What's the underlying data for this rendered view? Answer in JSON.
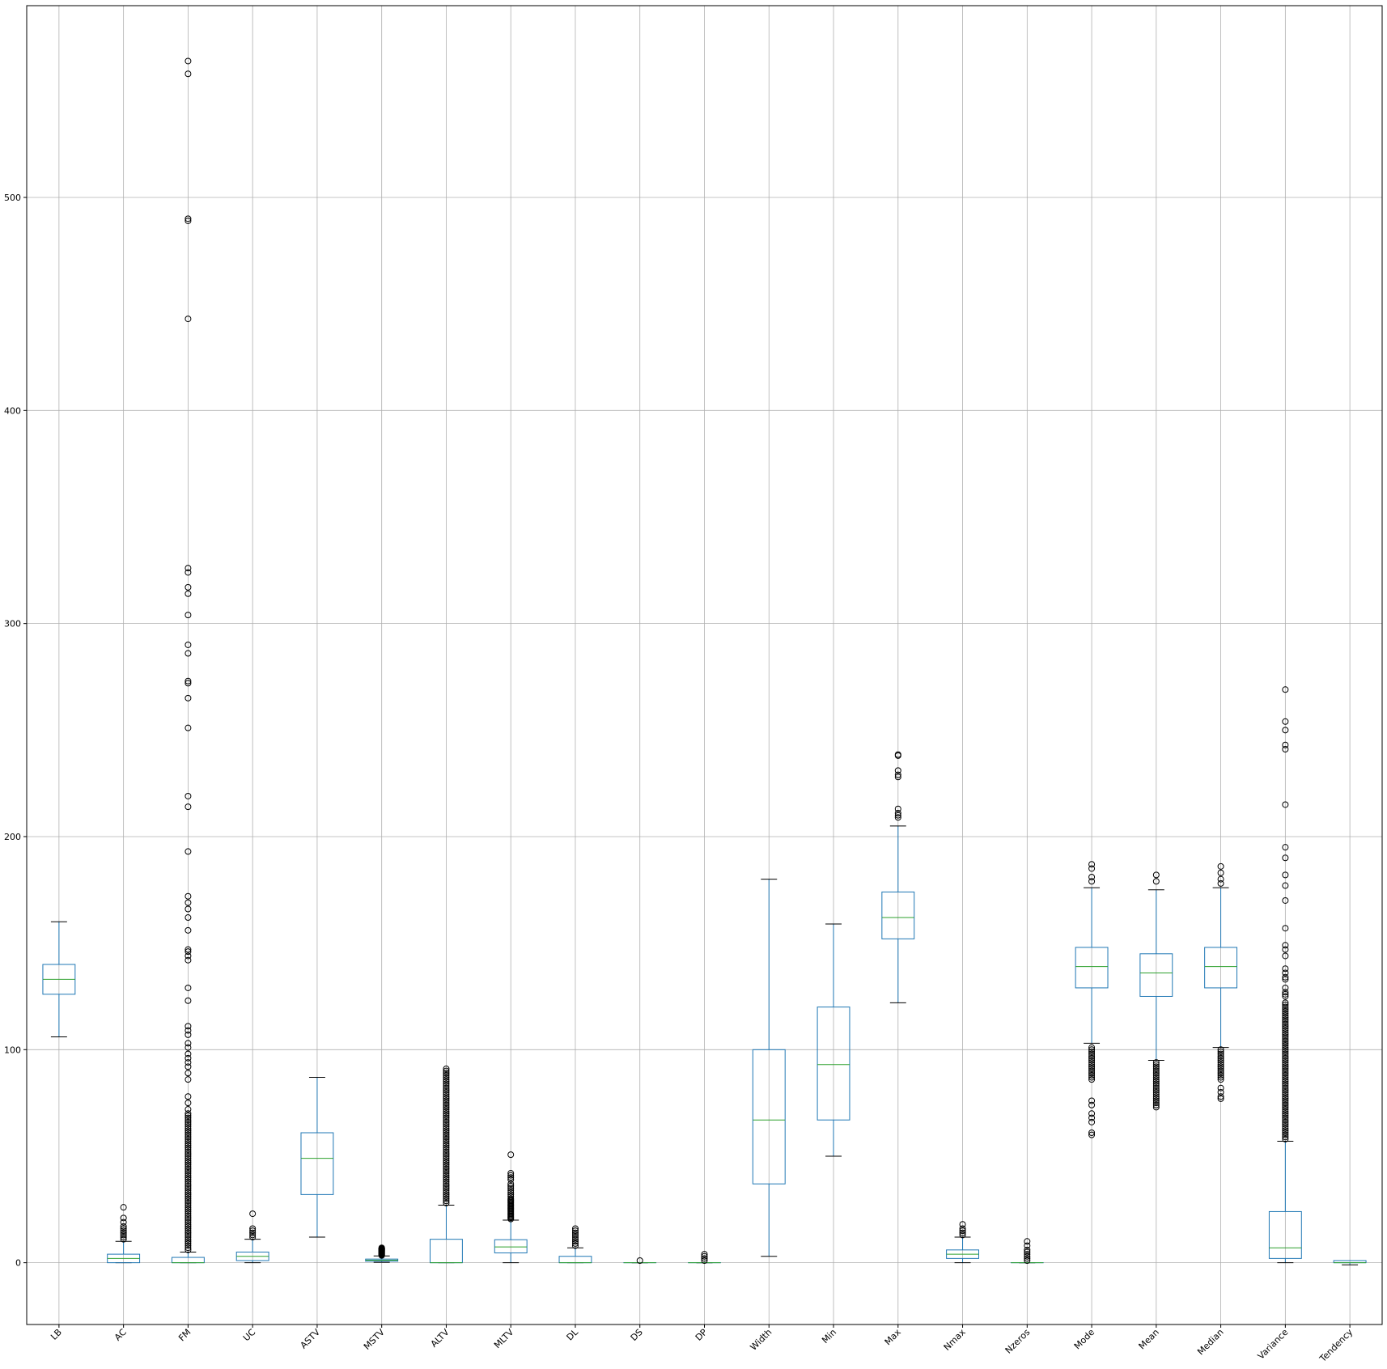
{
  "chart_data": {
    "type": "box",
    "title": "",
    "xlabel": "",
    "ylabel": "",
    "ylim": [
      -29,
      590
    ],
    "y_ticks": [
      0,
      100,
      200,
      300,
      400,
      500
    ],
    "y_tick_labels": [
      "0",
      "100",
      "200",
      "300",
      "400",
      "500"
    ],
    "grid": true,
    "x_tick_rotation_deg": 45,
    "colors": {
      "box": "#1f77b4",
      "median": "#2ca02c",
      "whisker_cap": "#000000",
      "flier": "#000000",
      "grid": "#b0b0b0"
    },
    "categories": [
      "LB",
      "AC",
      "FM",
      "UC",
      "ASTV",
      "MSTV",
      "ALTV",
      "MLTV",
      "DL",
      "DS",
      "DP",
      "Width",
      "Min",
      "Max",
      "Nmax",
      "Nzeros",
      "Mode",
      "Mean",
      "Median",
      "Variance",
      "Tendency"
    ],
    "boxes": [
      {
        "name": "LB",
        "whislo": 106,
        "q1": 126,
        "med": 133,
        "q3": 140,
        "whishi": 160,
        "fliers": []
      },
      {
        "name": "AC",
        "whislo": 0,
        "q1": 0,
        "med": 2,
        "q3": 4,
        "whishi": 10,
        "fliers": [
          11,
          12,
          13,
          14,
          15,
          16,
          17,
          19,
          21,
          26
        ]
      },
      {
        "name": "FM",
        "whislo": 0,
        "q1": 0,
        "med": 0,
        "q3": 2.5,
        "whishi": 5,
        "fliers": [
          6,
          7,
          8,
          9,
          10,
          11,
          12,
          13,
          14,
          15,
          16,
          17,
          18,
          19,
          20,
          21,
          22,
          23,
          24,
          25,
          26,
          27,
          28,
          29,
          30,
          31,
          32,
          33,
          34,
          35,
          36,
          37,
          38,
          39,
          40,
          41,
          42,
          43,
          44,
          45,
          46,
          47,
          48,
          49,
          50,
          51,
          52,
          53,
          54,
          55,
          56,
          57,
          58,
          59,
          60,
          61,
          62,
          63,
          64,
          65,
          66,
          67,
          68,
          69,
          70,
          72,
          75,
          78,
          86,
          89,
          92,
          94,
          96,
          98,
          101,
          103,
          107,
          109,
          111,
          123,
          129,
          142,
          144,
          146,
          147,
          156,
          162,
          166,
          169,
          172,
          193,
          214,
          219,
          251,
          265,
          272,
          273,
          286,
          290,
          304,
          314,
          317,
          324,
          326,
          443,
          489,
          490,
          558,
          564
        ]
      },
      {
        "name": "UC",
        "whislo": 0,
        "q1": 1,
        "med": 3,
        "q3": 5,
        "whishi": 11,
        "fliers": [
          12,
          13,
          14,
          15,
          16,
          23
        ]
      },
      {
        "name": "ASTV",
        "whislo": 12,
        "q1": 32,
        "med": 49,
        "q3": 61,
        "whishi": 87,
        "fliers": []
      },
      {
        "name": "MSTV",
        "whislo": 0.2,
        "q1": 0.7,
        "med": 1.2,
        "q3": 1.7,
        "whishi": 3.2,
        "fliers": [
          3.4,
          3.6,
          3.8,
          4,
          4.2,
          4.4,
          4.6,
          4.8,
          5,
          5.2,
          5.4,
          5.6,
          5.8,
          6,
          6.2,
          6.4,
          6.6,
          6.8,
          7
        ]
      },
      {
        "name": "ALTV",
        "whislo": 0,
        "q1": 0,
        "med": 0,
        "q3": 11,
        "whishi": 27,
        "fliers": [
          28,
          29,
          30,
          31,
          32,
          33,
          34,
          35,
          36,
          37,
          38,
          39,
          40,
          41,
          42,
          43,
          44,
          45,
          46,
          47,
          48,
          49,
          50,
          51,
          52,
          53,
          54,
          55,
          56,
          57,
          58,
          59,
          60,
          61,
          62,
          63,
          64,
          65,
          66,
          67,
          68,
          69,
          70,
          71,
          72,
          73,
          74,
          75,
          76,
          77,
          78,
          79,
          80,
          81,
          82,
          83,
          84,
          85,
          86,
          87,
          88,
          89,
          90,
          91
        ]
      },
      {
        "name": "MLTV",
        "whislo": 0,
        "q1": 4.6,
        "med": 7.4,
        "q3": 10.8,
        "whishi": 20,
        "fliers": [
          20.5,
          21,
          21.5,
          22,
          22.5,
          23,
          23.5,
          24,
          24.5,
          25,
          25.5,
          26,
          26.5,
          27,
          27.5,
          28,
          28.5,
          29,
          29.5,
          30,
          31,
          32,
          33,
          34,
          35,
          36,
          37,
          39,
          40,
          41,
          42,
          50.7
        ]
      },
      {
        "name": "DL",
        "whislo": 0,
        "q1": 0,
        "med": 0,
        "q3": 3,
        "whishi": 7,
        "fliers": [
          8,
          9,
          10,
          11,
          12,
          13,
          14,
          15,
          16
        ]
      },
      {
        "name": "DS",
        "whislo": 0,
        "q1": 0,
        "med": 0,
        "q3": 0,
        "whishi": 0,
        "fliers": [
          1
        ]
      },
      {
        "name": "DP",
        "whislo": 0,
        "q1": 0,
        "med": 0,
        "q3": 0,
        "whishi": 0,
        "fliers": [
          1,
          2,
          3,
          4
        ]
      },
      {
        "name": "Width",
        "whislo": 3,
        "q1": 37,
        "med": 67,
        "q3": 100,
        "whishi": 180,
        "fliers": []
      },
      {
        "name": "Min",
        "whislo": 50,
        "q1": 67,
        "med": 93,
        "q3": 120,
        "whishi": 159,
        "fliers": []
      },
      {
        "name": "Max",
        "whislo": 122,
        "q1": 152,
        "med": 162,
        "q3": 174,
        "whishi": 205,
        "fliers": [
          209,
          210,
          211,
          213,
          228,
          229,
          231,
          238,
          238.5
        ]
      },
      {
        "name": "Nmax",
        "whislo": 0,
        "q1": 2,
        "med": 4,
        "q3": 6,
        "whishi": 12,
        "fliers": [
          13,
          14,
          15,
          16,
          18
        ]
      },
      {
        "name": "Nzeros",
        "whislo": 0,
        "q1": 0,
        "med": 0,
        "q3": 0,
        "whishi": 0,
        "fliers": [
          1,
          2,
          3,
          4,
          5,
          6,
          8,
          10
        ]
      },
      {
        "name": "Mode",
        "whislo": 103,
        "q1": 129,
        "med": 139,
        "q3": 148,
        "whishi": 176,
        "fliers": [
          60,
          61,
          66,
          68,
          70,
          74,
          76,
          86,
          87,
          88,
          89,
          90,
          91,
          92,
          93,
          94,
          95,
          96,
          97,
          98,
          99,
          100,
          101,
          179,
          181,
          185,
          187
        ]
      },
      {
        "name": "Mean",
        "whislo": 95,
        "q1": 125,
        "med": 136,
        "q3": 145,
        "whishi": 175,
        "fliers": [
          73,
          74,
          75,
          76,
          77,
          78,
          79,
          80,
          81,
          82,
          83,
          84,
          85,
          86,
          87,
          88,
          89,
          90,
          91,
          92,
          93,
          94,
          179,
          182
        ]
      },
      {
        "name": "Median",
        "whislo": 101,
        "q1": 129,
        "med": 139,
        "q3": 148,
        "whishi": 176,
        "fliers": [
          77,
          78,
          80,
          82,
          86,
          87,
          88,
          89,
          90,
          91,
          92,
          93,
          94,
          95,
          96,
          97,
          98,
          99,
          100,
          178,
          180,
          183,
          186
        ]
      },
      {
        "name": "Variance",
        "whislo": 0,
        "q1": 2,
        "med": 7,
        "q3": 24,
        "whishi": 57,
        "fliers": [
          58,
          59,
          60,
          61,
          62,
          63,
          64,
          65,
          66,
          67,
          68,
          69,
          70,
          71,
          72,
          73,
          74,
          75,
          76,
          77,
          78,
          79,
          80,
          81,
          82,
          83,
          84,
          85,
          86,
          87,
          88,
          89,
          90,
          91,
          92,
          93,
          94,
          95,
          96,
          97,
          98,
          99,
          100,
          101,
          102,
          103,
          104,
          105,
          106,
          107,
          108,
          109,
          110,
          111,
          112,
          113,
          114,
          115,
          116,
          117,
          118,
          119,
          120,
          121,
          122,
          125,
          126,
          127,
          129,
          133,
          134,
          136,
          138,
          144,
          147,
          149,
          157,
          170,
          177,
          182,
          190,
          195,
          215,
          241,
          243,
          250,
          254,
          269
        ]
      },
      {
        "name": "Tendency",
        "whislo": -1,
        "q1": 0,
        "med": 0,
        "q3": 1,
        "whishi": 1,
        "fliers": []
      }
    ]
  }
}
